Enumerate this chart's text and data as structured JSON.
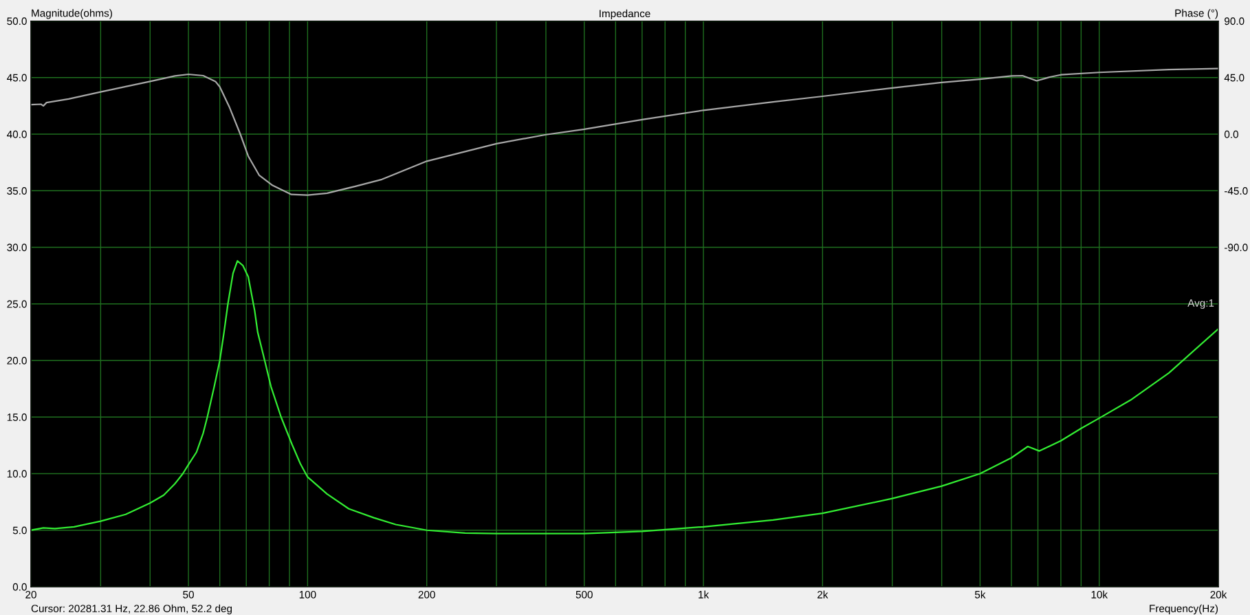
{
  "chart_data": {
    "type": "line",
    "title": "Impedance",
    "xlabel": "Frequency(Hz)",
    "ylabel": "Magnitude(ohms)",
    "y2label": "Phase (°)",
    "annotations": [
      "Cursor: 20281.31 Hz, 22.86 Ohm, 52.2 deg",
      "Avg:1"
    ],
    "log": "x",
    "grid": true,
    "xlim": [
      20,
      20000
    ],
    "xticks": [
      20,
      {
        "value": 30,
        "label": null
      },
      {
        "value": 40,
        "label": null
      },
      50,
      {
        "value": 60,
        "label": null
      },
      {
        "value": 70,
        "label": null
      },
      {
        "value": 80,
        "label": null
      },
      {
        "value": 90,
        "label": null
      },
      100,
      200,
      {
        "value": 300,
        "label": null
      },
      {
        "value": 400,
        "label": null
      },
      500,
      {
        "value": 600,
        "label": null
      },
      {
        "value": 700,
        "label": null
      },
      {
        "value": 800,
        "label": null
      },
      {
        "value": 900,
        "label": null
      },
      {
        "value": 1000,
        "label": "1k"
      },
      {
        "value": 2000,
        "label": "2k"
      },
      {
        "value": 3000,
        "label": null
      },
      {
        "value": 4000,
        "label": null
      },
      {
        "value": 5000,
        "label": "5k"
      },
      {
        "value": 6000,
        "label": null
      },
      {
        "value": 7000,
        "label": null
      },
      {
        "value": 8000,
        "label": null
      },
      {
        "value": 9000,
        "label": null
      },
      {
        "value": 10000,
        "label": "10k"
      },
      {
        "value": 20000,
        "label": "20k"
      }
    ],
    "ylim": [
      0,
      50
    ],
    "yticks": [
      {
        "value": 0,
        "label": "0.0"
      },
      {
        "value": 5,
        "label": "5.0"
      },
      {
        "value": 10,
        "label": "10.0"
      },
      {
        "value": 15,
        "label": "15.0"
      },
      {
        "value": 20,
        "label": "20.0"
      },
      {
        "value": 25,
        "label": "25.0"
      },
      {
        "value": 30,
        "label": "30.0"
      },
      {
        "value": 35,
        "label": "35.0"
      },
      {
        "value": 40,
        "label": "40.0"
      },
      {
        "value": 45,
        "label": "45.0"
      },
      {
        "value": 50,
        "label": "50.0"
      }
    ],
    "y2lim": [
      -360,
      90
    ],
    "y2ticks": [
      {
        "value": -90,
        "label": "-90.0"
      },
      {
        "value": -45,
        "label": "-45.0"
      },
      {
        "value": 0,
        "label": "0.0"
      },
      {
        "value": 45,
        "label": "45.0"
      },
      {
        "value": 90,
        "label": "90.0"
      }
    ],
    "series": [
      {
        "color": "#33ee33",
        "x": [
          20,
          21.5,
          23,
          25.7,
          30,
          34.7,
          40,
          43.3,
          46.2,
          48.4,
          50,
          52.4,
          54.5,
          55.8,
          58.1,
          60,
          61.5,
          62.9,
          64.8,
          66.5,
          68.6,
          70.8,
          73.5,
          74.8,
          77.9,
          80.8,
          85.7,
          91.3,
          95.8,
          100,
          112,
          127,
          147,
          167,
          200,
          250,
          300,
          400,
          500,
          700,
          1000,
          1500,
          2000,
          3000,
          4000,
          5000,
          6000,
          6600,
          7060,
          8000,
          9000,
          10000,
          12000,
          15000,
          20000
        ],
        "values": [
          5.0,
          5.2,
          5.15,
          5.3,
          5.8,
          6.4,
          7.4,
          8.1,
          9.1,
          10.0,
          10.8,
          11.9,
          13.6,
          15.0,
          17.7,
          20.0,
          22.5,
          25.0,
          27.7,
          28.8,
          28.4,
          27.4,
          24.4,
          22.5,
          20.0,
          17.7,
          15.0,
          12.6,
          10.9,
          9.7,
          8.2,
          6.9,
          6.1,
          5.5,
          5.0,
          4.75,
          4.7,
          4.7,
          4.7,
          4.9,
          5.3,
          5.9,
          6.5,
          7.8,
          8.9,
          10.0,
          11.4,
          12.4,
          12.0,
          12.9,
          14.0,
          14.9,
          16.5,
          18.9,
          22.8
        ]
      },
      {
        "color": "#a8a8a8",
        "axis": "y2",
        "x": [
          20,
          21.2,
          21.5,
          21.9,
          24.9,
          30,
          34.7,
          40,
          46.2,
          50,
          54.5,
          58.5,
          60,
          63.4,
          67.6,
          70.8,
          75.5,
          81.6,
          91,
          100,
          112,
          132,
          154,
          200,
          300,
          400,
          500,
          700,
          1000,
          1500,
          2000,
          3000,
          4000,
          5000,
          6000,
          6400,
          6950,
          7500,
          8000,
          10000,
          15000,
          20000
        ],
        "values": [
          23.4,
          23.8,
          22.5,
          25.1,
          28.0,
          33.6,
          37.8,
          41.9,
          46.3,
          47.6,
          46.5,
          41.9,
          37.6,
          21.8,
          0,
          -17.5,
          -32.8,
          -40.8,
          -48.0,
          -48.5,
          -47.0,
          -41.5,
          -36.0,
          -21.5,
          -7.6,
          -0.4,
          3.9,
          11.6,
          19.0,
          25.6,
          30.1,
          36.7,
          41.1,
          43.7,
          46.3,
          46.5,
          42.4,
          45.4,
          47.2,
          49.1,
          51.3,
          52.2
        ]
      }
    ]
  }
}
